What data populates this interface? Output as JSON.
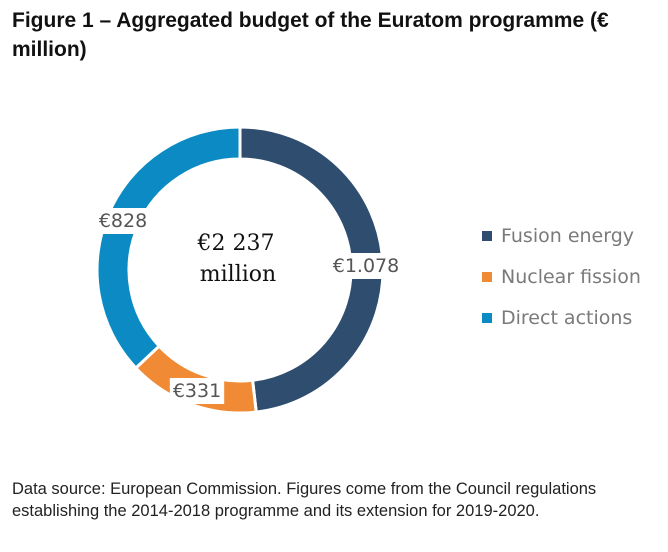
{
  "title": "Figure 1 – Aggregated budget of the Euratom programme (€ million)",
  "chart_data": {
    "type": "pie",
    "variant": "donut",
    "title": "Figure 1 – Aggregated budget of the Euratom programme (€ million)",
    "center_label": [
      "€2 237",
      "million"
    ],
    "series": [
      {
        "name": "Fusion energy",
        "value": 1078,
        "label": "€1.078",
        "color": "#2e4d6f"
      },
      {
        "name": "Nuclear fission",
        "value": 331,
        "label": "€331",
        "color": "#f08a35"
      },
      {
        "name": "Direct actions",
        "value": 828,
        "label": "€828",
        "color": "#0b8ac3"
      }
    ],
    "legend_position": "right"
  },
  "source": "Data source: European Commission. Figures come from the Council regulations establishing the 2014-2018 programme and its extension for 2019-2020."
}
